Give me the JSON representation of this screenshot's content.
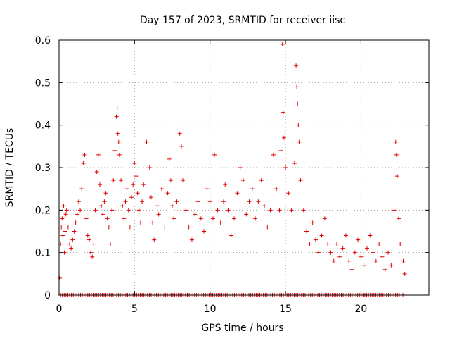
{
  "chart_data": {
    "type": "scatter",
    "title": "Day 157 of 2023, SRMTID for receiver iisc",
    "xlabel": "GPS time / hours",
    "ylabel": "SRMTID / TECUs",
    "xlim": [
      0,
      24.5
    ],
    "ylim": [
      0,
      0.6
    ],
    "xticks": [
      0,
      5,
      10,
      15,
      20
    ],
    "xtick_labels": [
      "0",
      "5",
      "10",
      "15",
      "20"
    ],
    "yticks": [
      0,
      0.1,
      0.2,
      0.3,
      0.4,
      0.5,
      0.6
    ],
    "ytick_labels": [
      "0",
      "0.1",
      "0.2",
      "0.3",
      "0.4",
      "0.5",
      "0.6"
    ],
    "grid": true,
    "marker": "+",
    "color": "#e00000",
    "series": [
      {
        "name": "SRMTID",
        "points": [
          [
            0.05,
            0.04
          ],
          [
            0.1,
            0.12
          ],
          [
            0.15,
            0.16
          ],
          [
            0.2,
            0.18
          ],
          [
            0.25,
            0.14
          ],
          [
            0.3,
            0.21
          ],
          [
            0.35,
            0.1
          ],
          [
            0.4,
            0.15
          ],
          [
            0.45,
            0.19
          ],
          [
            0.5,
            0.2
          ],
          [
            0.6,
            0.16
          ],
          [
            0.7,
            0.12
          ],
          [
            0.8,
            0.11
          ],
          [
            0.9,
            0.13
          ],
          [
            1.0,
            0.15
          ],
          [
            1.1,
            0.17
          ],
          [
            1.2,
            0.19
          ],
          [
            1.3,
            0.22
          ],
          [
            1.4,
            0.2
          ],
          [
            1.5,
            0.25
          ],
          [
            1.6,
            0.31
          ],
          [
            1.7,
            0.33
          ],
          [
            1.8,
            0.18
          ],
          [
            1.9,
            0.14
          ],
          [
            2.0,
            0.13
          ],
          [
            2.1,
            0.1
          ],
          [
            2.2,
            0.09
          ],
          [
            2.3,
            0.12
          ],
          [
            2.4,
            0.2
          ],
          [
            2.5,
            0.29
          ],
          [
            2.6,
            0.33
          ],
          [
            2.7,
            0.26
          ],
          [
            2.8,
            0.21
          ],
          [
            2.9,
            0.19
          ],
          [
            3.0,
            0.22
          ],
          [
            3.1,
            0.24
          ],
          [
            3.2,
            0.18
          ],
          [
            3.3,
            0.16
          ],
          [
            3.4,
            0.12
          ],
          [
            3.5,
            0.2
          ],
          [
            3.6,
            0.27
          ],
          [
            3.7,
            0.34
          ],
          [
            3.8,
            0.42
          ],
          [
            3.85,
            0.44
          ],
          [
            3.9,
            0.38
          ],
          [
            3.95,
            0.36
          ],
          [
            4.0,
            0.33
          ],
          [
            4.1,
            0.27
          ],
          [
            4.2,
            0.21
          ],
          [
            4.3,
            0.18
          ],
          [
            4.4,
            0.22
          ],
          [
            4.5,
            0.25
          ],
          [
            4.6,
            0.2
          ],
          [
            4.7,
            0.16
          ],
          [
            4.8,
            0.23
          ],
          [
            4.9,
            0.26
          ],
          [
            5.0,
            0.31
          ],
          [
            5.1,
            0.28
          ],
          [
            5.2,
            0.24
          ],
          [
            5.3,
            0.2
          ],
          [
            5.4,
            0.17
          ],
          [
            5.5,
            0.22
          ],
          [
            5.6,
            0.26
          ],
          [
            5.8,
            0.36
          ],
          [
            6.0,
            0.3
          ],
          [
            6.1,
            0.23
          ],
          [
            6.2,
            0.17
          ],
          [
            6.3,
            0.13
          ],
          [
            6.5,
            0.21
          ],
          [
            6.6,
            0.19
          ],
          [
            6.8,
            0.25
          ],
          [
            7.0,
            0.16
          ],
          [
            7.2,
            0.24
          ],
          [
            7.3,
            0.32
          ],
          [
            7.4,
            0.27
          ],
          [
            7.5,
            0.21
          ],
          [
            7.6,
            0.18
          ],
          [
            7.8,
            0.22
          ],
          [
            8.0,
            0.38
          ],
          [
            8.1,
            0.35
          ],
          [
            8.2,
            0.27
          ],
          [
            8.4,
            0.2
          ],
          [
            8.6,
            0.16
          ],
          [
            8.8,
            0.13
          ],
          [
            9.0,
            0.19
          ],
          [
            9.2,
            0.22
          ],
          [
            9.4,
            0.18
          ],
          [
            9.6,
            0.15
          ],
          [
            9.8,
            0.25
          ],
          [
            10.0,
            0.22
          ],
          [
            10.2,
            0.18
          ],
          [
            10.3,
            0.33
          ],
          [
            10.5,
            0.2
          ],
          [
            10.7,
            0.17
          ],
          [
            10.9,
            0.22
          ],
          [
            11.0,
            0.26
          ],
          [
            11.2,
            0.2
          ],
          [
            11.4,
            0.14
          ],
          [
            11.6,
            0.18
          ],
          [
            11.8,
            0.24
          ],
          [
            12.0,
            0.3
          ],
          [
            12.2,
            0.27
          ],
          [
            12.4,
            0.19
          ],
          [
            12.6,
            0.22
          ],
          [
            12.8,
            0.25
          ],
          [
            13.0,
            0.18
          ],
          [
            13.2,
            0.22
          ],
          [
            13.4,
            0.27
          ],
          [
            13.6,
            0.21
          ],
          [
            13.8,
            0.16
          ],
          [
            14.0,
            0.2
          ],
          [
            14.2,
            0.33
          ],
          [
            14.4,
            0.25
          ],
          [
            14.6,
            0.2
          ],
          [
            14.7,
            0.34
          ],
          [
            14.8,
            0.59
          ],
          [
            14.85,
            0.43
          ],
          [
            14.9,
            0.37
          ],
          [
            15.0,
            0.3
          ],
          [
            15.2,
            0.24
          ],
          [
            15.4,
            0.2
          ],
          [
            15.6,
            0.31
          ],
          [
            15.7,
            0.54
          ],
          [
            15.75,
            0.49
          ],
          [
            15.8,
            0.45
          ],
          [
            15.85,
            0.4
          ],
          [
            15.9,
            0.36
          ],
          [
            16.0,
            0.27
          ],
          [
            16.2,
            0.2
          ],
          [
            16.4,
            0.15
          ],
          [
            16.6,
            0.12
          ],
          [
            16.8,
            0.17
          ],
          [
            17.0,
            0.13
          ],
          [
            17.2,
            0.1
          ],
          [
            17.4,
            0.14
          ],
          [
            17.6,
            0.18
          ],
          [
            17.8,
            0.12
          ],
          [
            18.0,
            0.1
          ],
          [
            18.2,
            0.08
          ],
          [
            18.4,
            0.12
          ],
          [
            18.6,
            0.09
          ],
          [
            18.8,
            0.11
          ],
          [
            19.0,
            0.14
          ],
          [
            19.2,
            0.08
          ],
          [
            19.4,
            0.06
          ],
          [
            19.6,
            0.1
          ],
          [
            19.8,
            0.13
          ],
          [
            20.0,
            0.09
          ],
          [
            20.2,
            0.07
          ],
          [
            20.4,
            0.11
          ],
          [
            20.6,
            0.14
          ],
          [
            20.8,
            0.1
          ],
          [
            21.0,
            0.08
          ],
          [
            21.2,
            0.12
          ],
          [
            21.4,
            0.09
          ],
          [
            21.6,
            0.06
          ],
          [
            21.8,
            0.1
          ],
          [
            22.0,
            0.07
          ],
          [
            22.2,
            0.2
          ],
          [
            22.3,
            0.36
          ],
          [
            22.35,
            0.33
          ],
          [
            22.4,
            0.28
          ],
          [
            22.5,
            0.18
          ],
          [
            22.6,
            0.12
          ],
          [
            22.8,
            0.08
          ],
          [
            22.9,
            0.05
          ]
        ]
      }
    ],
    "zero_axis_density_note": "many points lie at y = 0 across the whole time range"
  }
}
